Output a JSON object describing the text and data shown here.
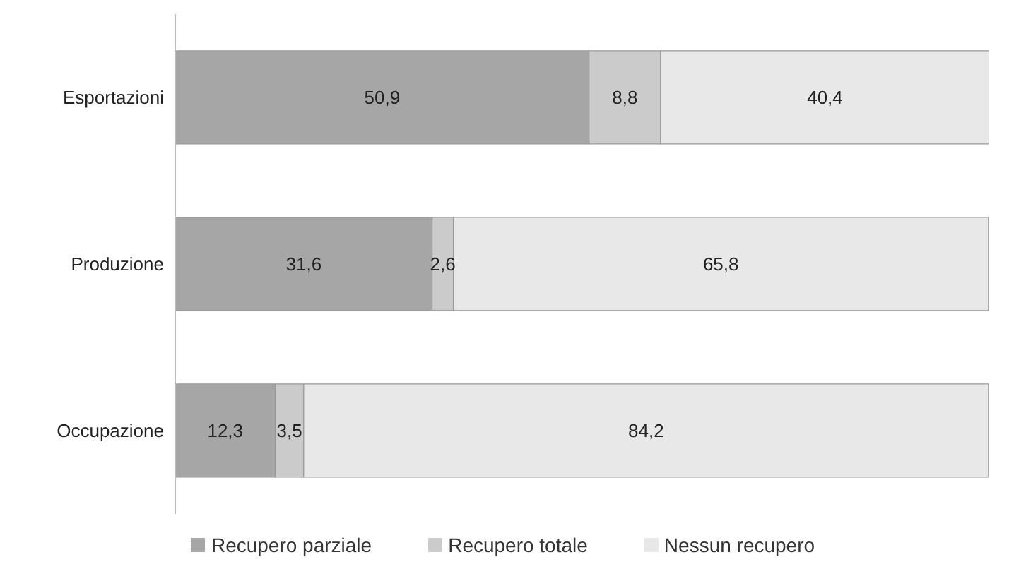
{
  "chart_data": {
    "type": "bar",
    "orientation": "horizontal",
    "stacked": true,
    "categories": [
      "Esportazioni",
      "Produzione",
      "Occupazione"
    ],
    "series": [
      {
        "name": "Recupero parziale",
        "color": "#a6a6a6",
        "values": [
          50.9,
          31.6,
          12.3
        ],
        "value_labels": [
          "50,9",
          "31,6",
          "12,3"
        ]
      },
      {
        "name": "Recupero totale",
        "color": "#cbcbcb",
        "values": [
          8.8,
          2.6,
          3.5
        ],
        "value_labels": [
          "8,8",
          "2,6",
          "3,5"
        ]
      },
      {
        "name": "Nessun recupero",
        "color": "#e8e8e8",
        "values": [
          40.4,
          65.8,
          84.2
        ],
        "value_labels": [
          "40,4",
          "65,8",
          "84,2"
        ]
      }
    ],
    "legend": "bottom",
    "tick_labels": "y",
    "grid": false
  }
}
